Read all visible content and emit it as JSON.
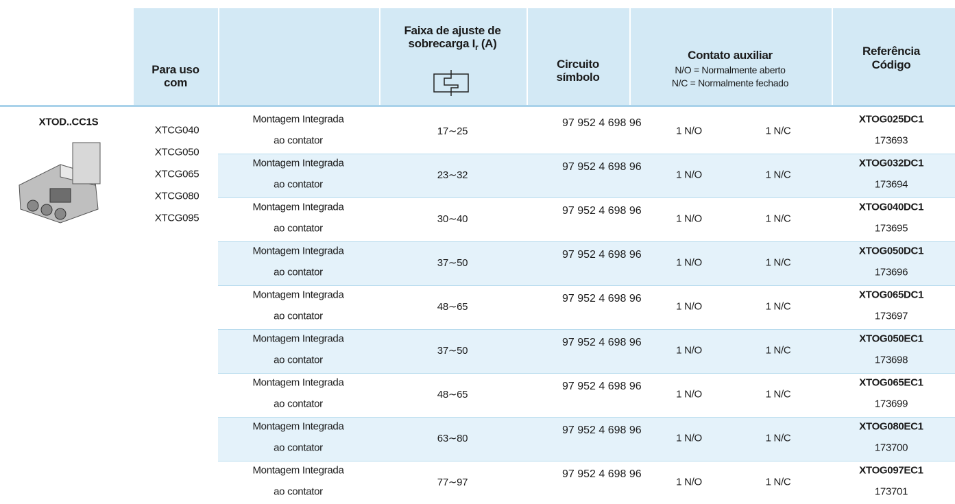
{
  "header": {
    "columns": [
      {
        "lines": [
          "Para uso",
          "com"
        ]
      },
      {
        "line1": "Faixa de ajuste de",
        "line2": "sobrecarga I",
        "subscript": "r",
        "suffix": "(A)"
      },
      {
        "lines": [
          "Circuito",
          "símbolo"
        ]
      },
      {
        "title": "Contato auxiliar",
        "notes": [
          "N/O = Normalmente aberto",
          "N/C = Normalmente fechado"
        ]
      },
      {
        "lines": [
          "Referência",
          "Código"
        ]
      }
    ]
  },
  "product": {
    "name": "XTOD..CC1S",
    "for_use_with": [
      "XTCG040",
      "XTCG050",
      "XTCG065",
      "XTCG080",
      "XTCG095"
    ]
  },
  "circuit_symbol": {
    "top": "97 95",
    "bottom_left": "2 4 6",
    "bottom_right": "98 96"
  },
  "rows": [
    {
      "mounting": [
        "Montagem Integrada",
        "ao contator"
      ],
      "range": "17∼25",
      "no": "1 N/O",
      "nc": "1 N/C",
      "reference": "XTOG025DC1",
      "code": "173693"
    },
    {
      "mounting": [
        "Montagem Integrada",
        "ao contator"
      ],
      "range": "23∼32",
      "no": "1 N/O",
      "nc": "1 N/C",
      "reference": "XTOG032DC1",
      "code": "173694"
    },
    {
      "mounting": [
        "Montagem Integrada",
        "ao contator"
      ],
      "range": "30∼40",
      "no": "1 N/O",
      "nc": "1 N/C",
      "reference": "XTOG040DC1",
      "code": "173695"
    },
    {
      "mounting": [
        "Montagem Integrada",
        "ao contator"
      ],
      "range": "37∼50",
      "no": "1 N/O",
      "nc": "1 N/C",
      "reference": "XTOG050DC1",
      "code": "173696"
    },
    {
      "mounting": [
        "Montagem Integrada",
        "ao contator"
      ],
      "range": "48∼65",
      "no": "1 N/O",
      "nc": "1 N/C",
      "reference": "XTOG065DC1",
      "code": "173697"
    },
    {
      "mounting": [
        "Montagem Integrada",
        "ao contator"
      ],
      "range": "37∼50",
      "no": "1 N/O",
      "nc": "1 N/C",
      "reference": "XTOG050EC1",
      "code": "173698"
    },
    {
      "mounting": [
        "Montagem Integrada",
        "ao contator"
      ],
      "range": "48∼65",
      "no": "1 N/O",
      "nc": "1 N/C",
      "reference": "XTOG065EC1",
      "code": "173699"
    },
    {
      "mounting": [
        "Montagem Integrada",
        "ao contator"
      ],
      "range": "63∼80",
      "no": "1 N/O",
      "nc": "1 N/C",
      "reference": "XTOG080EC1",
      "code": "173700"
    },
    {
      "mounting": [
        "Montagem Integrada",
        "ao contator"
      ],
      "range": "77∼97",
      "no": "1 N/O",
      "nc": "1 N/C",
      "reference": "XTOG097EC1",
      "code": "173701"
    }
  ]
}
